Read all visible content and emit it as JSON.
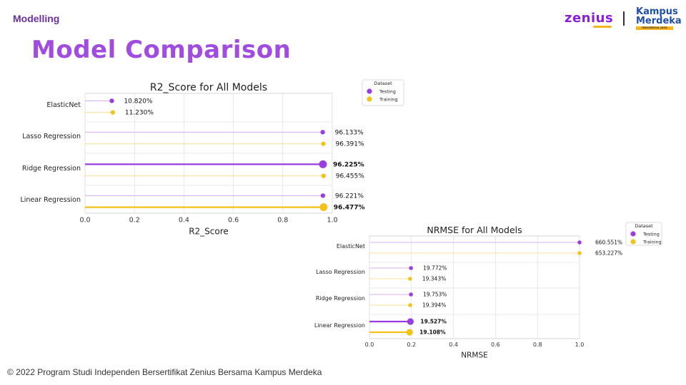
{
  "header": {
    "section_label": "Modelling",
    "title": "Model Comparison",
    "logo_zenius": "zenius",
    "logo_km_line1": "Kampus",
    "logo_km_line2": "Merdeka",
    "logo_km_tag": "INDONESIA JAYA"
  },
  "footer": {
    "copyright": "© 2022 Program Studi Independen Bersertifikat Zenius Bersama Kampus Merdeka"
  },
  "colors": {
    "testing": "#9a3de0",
    "training": "#f5c21b",
    "title_purple": "#a04ce0"
  },
  "chart_data": [
    {
      "type": "lollipop",
      "title": "R2_Score for All Models",
      "xlabel": "R2_Score",
      "ylabel": "",
      "xlim": [
        0,
        1.0
      ],
      "xticks": [
        "0.0",
        "0.2",
        "0.4",
        "0.6",
        "0.8",
        "1.0"
      ],
      "categories": [
        "ElasticNet",
        "Lasso Regression",
        "Ridge Regression",
        "Linear Regression"
      ],
      "legend": {
        "title": "Dataset",
        "placement": "outside-top-right",
        "entries": [
          "Testing",
          "Training"
        ]
      },
      "grid": true,
      "series": [
        {
          "name": "Testing",
          "values": [
            0.1082,
            0.96133,
            0.96225,
            0.96221
          ],
          "labels": [
            "10.820%",
            "96.133%",
            "96.225%",
            "96.221%"
          ],
          "highlight": [
            false,
            false,
            true,
            false
          ]
        },
        {
          "name": "Training",
          "values": [
            0.1123,
            0.96391,
            0.96455,
            0.96477
          ],
          "labels": [
            "11.230%",
            "96.391%",
            "96.455%",
            "96.477%"
          ],
          "highlight": [
            false,
            false,
            false,
            true
          ]
        }
      ]
    },
    {
      "type": "lollipop",
      "title": "NRMSE for All Models",
      "xlabel": "NRMSE",
      "ylabel": "",
      "xlim": [
        0,
        1.0
      ],
      "xticks": [
        "0.0",
        "0.2",
        "0.4",
        "0.6",
        "0.8",
        "1.0"
      ],
      "categories": [
        "ElasticNet",
        "Lasso Regression",
        "Ridge Regression",
        "Linear Regression"
      ],
      "legend": {
        "title": "Dataset",
        "placement": "outside-top-right",
        "entries": [
          "Testing",
          "Training"
        ]
      },
      "grid": true,
      "series": [
        {
          "name": "Testing",
          "values": [
            6.60551,
            0.19772,
            0.19753,
            0.19527
          ],
          "labels": [
            "660.551%",
            "19.772%",
            "19.753%",
            "19.527%"
          ],
          "highlight": [
            false,
            false,
            false,
            true
          ]
        },
        {
          "name": "Training",
          "values": [
            6.53227,
            0.19343,
            0.19394,
            0.19108
          ],
          "labels": [
            "653.227%",
            "19.343%",
            "19.394%",
            "19.108%"
          ],
          "highlight": [
            false,
            false,
            false,
            true
          ]
        }
      ]
    }
  ]
}
